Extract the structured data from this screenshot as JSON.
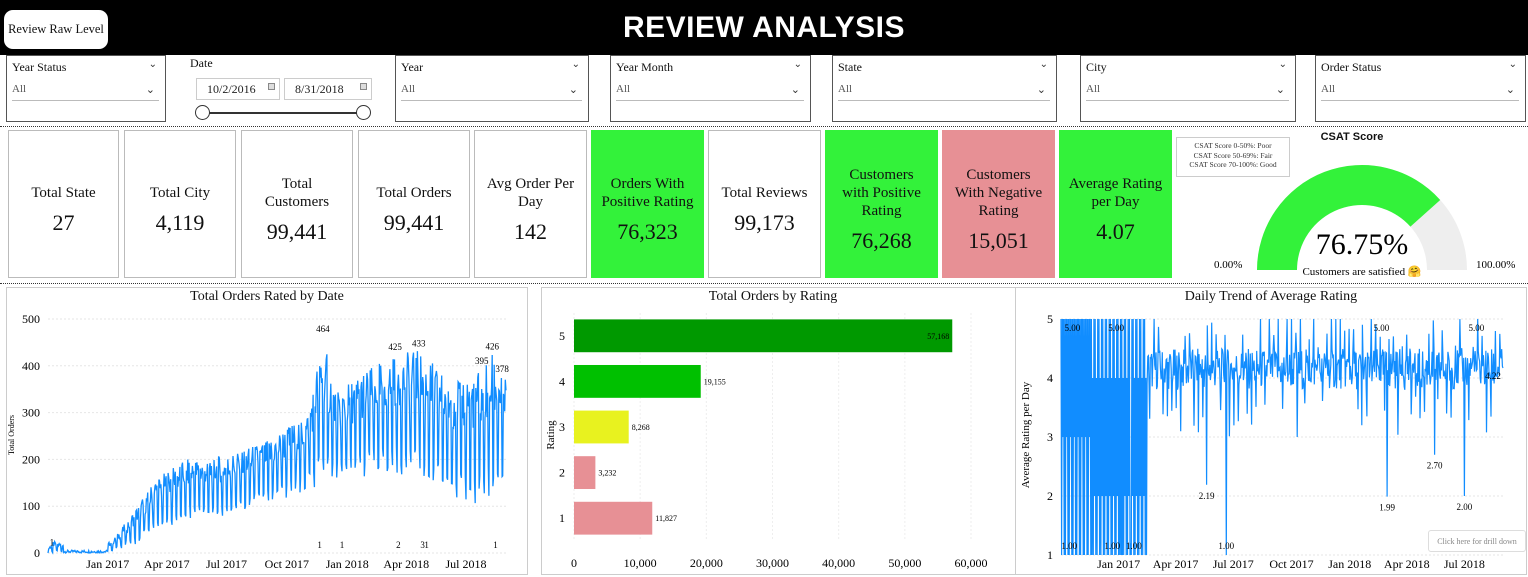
{
  "header": {
    "title": "REVIEW ANALYSIS",
    "raw_button_label": "Review Raw Level"
  },
  "filters": {
    "year_status": {
      "label": "Year Status",
      "value": "All"
    },
    "date": {
      "label": "Date",
      "start": "10/2/2016",
      "end": "8/31/2018"
    },
    "year": {
      "label": "Year",
      "value": "All"
    },
    "year_month": {
      "label": "Year Month",
      "value": "All"
    },
    "state": {
      "label": "State",
      "value": "All"
    },
    "city": {
      "label": "City",
      "value": "All"
    },
    "order_status": {
      "label": "Order Status",
      "value": "All"
    },
    "chevron_icon": "chevron-down-icon"
  },
  "kpis": [
    {
      "title": "Total State",
      "value": "27",
      "style": "plain"
    },
    {
      "title": "Total City",
      "value": "4,119",
      "style": "plain"
    },
    {
      "title": "Total Customers",
      "value": "99,441",
      "style": "plain"
    },
    {
      "title": "Total Orders",
      "value": "99,441",
      "style": "plain"
    },
    {
      "title": "Avg Order Per Day",
      "value": "142",
      "style": "plain"
    },
    {
      "title": "Orders With Positive Rating",
      "value": "76,323",
      "style": "green"
    },
    {
      "title": "Total Reviews",
      "value": "99,173",
      "style": "plain"
    },
    {
      "title": "Customers with Positive Rating",
      "value": "76,268",
      "style": "green"
    },
    {
      "title": "Customers With Negative Rating",
      "value": "15,051",
      "style": "red"
    },
    {
      "title": "Average Rating per Day",
      "value": "4.07",
      "style": "green"
    }
  ],
  "csat": {
    "title": "CSAT Score",
    "value": 76.75,
    "value_label": "76.75%",
    "min_label": "0.00%",
    "max_label": "100.00%",
    "caption": "Customers are satisfied 🤗",
    "legend": [
      "CSAT Score 0-50%: Poor",
      "CSAT Score 50-69%: Fair",
      "CSAT Score 70-100%: Good"
    ],
    "colors": {
      "fill": "#33f23a",
      "track": "#eeeeee"
    }
  },
  "colors": {
    "green": "#33f23a",
    "red": "#e79095",
    "line": "#118dff"
  },
  "drill_hint": "Click here for drill down",
  "chart_data": [
    {
      "type": "line",
      "title": "Total Orders Rated by Date",
      "xlabel": "",
      "ylabel": "Total Orders",
      "ylim": [
        0,
        500
      ],
      "yticks": [
        "0",
        "100",
        "200",
        "300",
        "400",
        "500"
      ],
      "xticks": [
        "Jan 2017",
        "Apr 2017",
        "Jul 2017",
        "Oct 2017",
        "Jan 2018",
        "Apr 2018",
        "Jul 2018"
      ],
      "x_range": [
        "2016-10-02",
        "2018-08-31"
      ],
      "series": [
        {
          "values_envelope": [
            {
              "date": "2016-10-02",
              "low": 0,
              "high": 10
            },
            {
              "date": "2016-10-10",
              "low": 0,
              "high": 25
            },
            {
              "date": "2016-12-15",
              "low": 0,
              "high": 5
            },
            {
              "date": "2017-01-10",
              "low": 5,
              "high": 30
            },
            {
              "date": "2017-02-15",
              "low": 20,
              "high": 100
            },
            {
              "date": "2017-03-15",
              "low": 40,
              "high": 160
            },
            {
              "date": "2017-05-01",
              "low": 70,
              "high": 200
            },
            {
              "date": "2017-07-01",
              "low": 80,
              "high": 210
            },
            {
              "date": "2017-09-01",
              "low": 100,
              "high": 240
            },
            {
              "date": "2017-11-01",
              "low": 130,
              "high": 300
            },
            {
              "date": "2017-11-25",
              "low": 150,
              "high": 464
            },
            {
              "date": "2017-12-15",
              "low": 150,
              "high": 340
            },
            {
              "date": "2018-01-15",
              "low": 160,
              "high": 380
            },
            {
              "date": "2018-03-15",
              "low": 170,
              "high": 425
            },
            {
              "date": "2018-04-20",
              "low": 150,
              "high": 433
            },
            {
              "date": "2018-06-01",
              "low": 120,
              "high": 380
            },
            {
              "date": "2018-07-25",
              "low": 100,
              "high": 395
            },
            {
              "date": "2018-08-10",
              "low": 120,
              "high": 426
            },
            {
              "date": "2018-08-31",
              "low": 150,
              "high": 378
            }
          ]
        }
      ],
      "annotations": [
        "464",
        "425",
        "433",
        "395",
        "426",
        "378",
        "1",
        "1",
        "1",
        "3",
        "1",
        "1"
      ]
    },
    {
      "type": "bar",
      "orientation": "horizontal",
      "title": "Total Orders by Rating",
      "ylabel": "Rating",
      "categories": [
        "5",
        "4",
        "3",
        "2",
        "1"
      ],
      "values": [
        57168,
        19155,
        8268,
        3232,
        11827
      ],
      "value_labels": [
        "57,168",
        "19,155",
        "8,268",
        "3,232",
        "11,827"
      ],
      "bar_colors": [
        "#009900",
        "#00c000",
        "#e8f21f",
        "#e79095",
        "#e79095"
      ],
      "xlim": [
        0,
        60000
      ],
      "xticks": [
        "0",
        "10,000",
        "20,000",
        "30,000",
        "40,000",
        "50,000",
        "60,000"
      ]
    },
    {
      "type": "line",
      "title": "Daily Trend of Average Rating",
      "ylabel": "Average Rating per Day",
      "ylim": [
        1,
        5
      ],
      "yticks": [
        "1",
        "2",
        "3",
        "4",
        "5"
      ],
      "xticks": [
        "Jan 2017",
        "Apr 2017",
        "Jul 2017",
        "Oct 2017",
        "Jan 2018",
        "Apr 2018",
        "Jul 2018"
      ],
      "x_range": [
        "2016-10-02",
        "2018-08-31"
      ],
      "baseline": 4.15,
      "annotations": [
        "5.00",
        "5.00",
        "5.00",
        "5.00",
        "1.00",
        "1.00",
        "1.00",
        "1.00",
        "2.19",
        "1.99",
        "2.70",
        "2.00",
        "4.22"
      ]
    }
  ]
}
